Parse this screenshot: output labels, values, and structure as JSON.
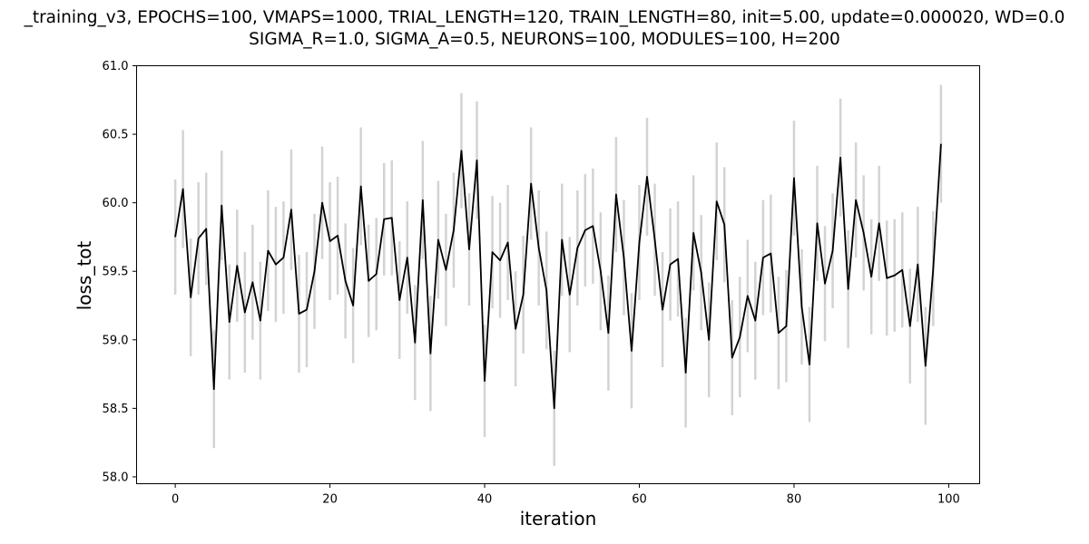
{
  "chart_data": {
    "type": "line",
    "title_line1": "_training_v3, EPOCHS=100, VMAPS=1000, TRIAL_LENGTH=120, TRAIN_LENGTH=80, init=5.00, update=0.000020, WD=0.0",
    "title_line2": "SIGMA_R=1.0, SIGMA_A=0.5, NEURONS=100, MODULES=100, H=200",
    "xlabel": "iteration",
    "ylabel": "loss_tot",
    "xlim": [
      -5,
      104
    ],
    "ylim": [
      57.95,
      61.0
    ],
    "xticks": [
      0,
      20,
      40,
      60,
      80,
      100
    ],
    "yticks": [
      58.0,
      58.5,
      59.0,
      59.5,
      60.0,
      60.5,
      61.0
    ],
    "ytick_labels": [
      "58.0",
      "58.5",
      "59.0",
      "59.5",
      "60.0",
      "60.5",
      "61.0"
    ],
    "grid": false,
    "line_color": "#000000",
    "errorbar_color": "#d3d3d3",
    "series": [
      {
        "x": [
          0,
          1,
          2,
          3,
          4,
          5,
          6,
          7,
          8,
          9,
          10,
          11,
          12,
          13,
          14,
          15,
          16,
          17,
          18,
          19,
          20,
          21,
          22,
          23,
          24,
          25,
          26,
          27,
          28,
          29,
          30,
          31,
          32,
          33,
          34,
          35,
          36,
          37,
          38,
          39,
          40,
          41,
          42,
          43,
          44,
          45,
          46,
          47,
          48,
          49,
          50,
          51,
          52,
          53,
          54,
          55,
          56,
          57,
          58,
          59,
          60,
          61,
          62,
          63,
          64,
          65,
          66,
          67,
          68,
          69,
          70,
          71,
          72,
          73,
          74,
          75,
          76,
          77,
          78,
          79,
          80,
          81,
          82,
          83,
          84,
          85,
          86,
          87,
          88,
          89,
          90,
          91,
          92,
          93,
          94,
          95,
          96,
          97,
          98,
          99
        ],
        "y": [
          59.75,
          60.1,
          59.31,
          59.74,
          59.81,
          58.64,
          59.98,
          59.13,
          59.54,
          59.2,
          59.42,
          59.14,
          59.65,
          59.55,
          59.6,
          59.95,
          59.19,
          59.22,
          59.5,
          60.0,
          59.72,
          59.76,
          59.43,
          59.25,
          60.12,
          59.43,
          59.48,
          59.88,
          59.89,
          59.29,
          59.6,
          58.98,
          60.02,
          58.9,
          59.73,
          59.51,
          59.8,
          60.38,
          59.66,
          60.31,
          58.7,
          59.64,
          59.58,
          59.71,
          59.08,
          59.33,
          60.14,
          59.67,
          59.36,
          58.5,
          59.73,
          59.33,
          59.67,
          59.8,
          59.83,
          59.5,
          59.05,
          60.06,
          59.6,
          58.92,
          59.71,
          60.19,
          59.73,
          59.22,
          59.55,
          59.59,
          58.76,
          59.78,
          59.49,
          59.0,
          60.01,
          59.84,
          58.87,
          59.02,
          59.32,
          59.14,
          59.6,
          59.63,
          59.05,
          59.1,
          60.18,
          59.24,
          58.82,
          59.85,
          59.41,
          59.65,
          60.33,
          59.37,
          60.02,
          59.78,
          59.46,
          59.85,
          59.45,
          59.47,
          59.51,
          59.1,
          59.55,
          58.81,
          59.52,
          60.43
        ],
        "err": [
          0.42,
          0.43,
          0.43,
          0.41,
          0.41,
          0.43,
          0.4,
          0.42,
          0.41,
          0.44,
          0.42,
          0.43,
          0.44,
          0.42,
          0.41,
          0.44,
          0.43,
          0.42,
          0.42,
          0.41,
          0.43,
          0.43,
          0.42,
          0.42,
          0.43,
          0.41,
          0.41,
          0.41,
          0.42,
          0.43,
          0.41,
          0.42,
          0.43,
          0.42,
          0.43,
          0.41,
          0.42,
          0.42,
          0.41,
          0.43,
          0.41,
          0.41,
          0.42,
          0.42,
          0.42,
          0.43,
          0.41,
          0.42,
          0.43,
          0.42,
          0.41,
          0.42,
          0.42,
          0.41,
          0.42,
          0.43,
          0.42,
          0.42,
          0.42,
          0.42,
          0.42,
          0.43,
          0.41,
          0.42,
          0.41,
          0.42,
          0.4,
          0.42,
          0.42,
          0.42,
          0.43,
          0.42,
          0.42,
          0.44,
          0.41,
          0.43,
          0.42,
          0.43,
          0.41,
          0.41,
          0.42,
          0.42,
          0.42,
          0.42,
          0.42,
          0.42,
          0.43,
          0.43,
          0.42,
          0.42,
          0.42,
          0.42,
          0.42,
          0.41,
          0.42,
          0.42,
          0.42,
          0.43,
          0.42,
          0.43
        ]
      }
    ]
  }
}
